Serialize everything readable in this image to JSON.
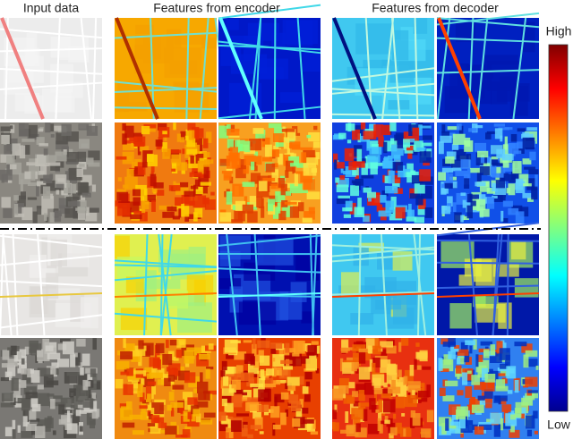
{
  "header": {
    "input": "Input data",
    "encoder": "Features from encoder",
    "decoder": "Features from decoder"
  },
  "colorbar": {
    "high": "High",
    "low": "Low"
  }
}
